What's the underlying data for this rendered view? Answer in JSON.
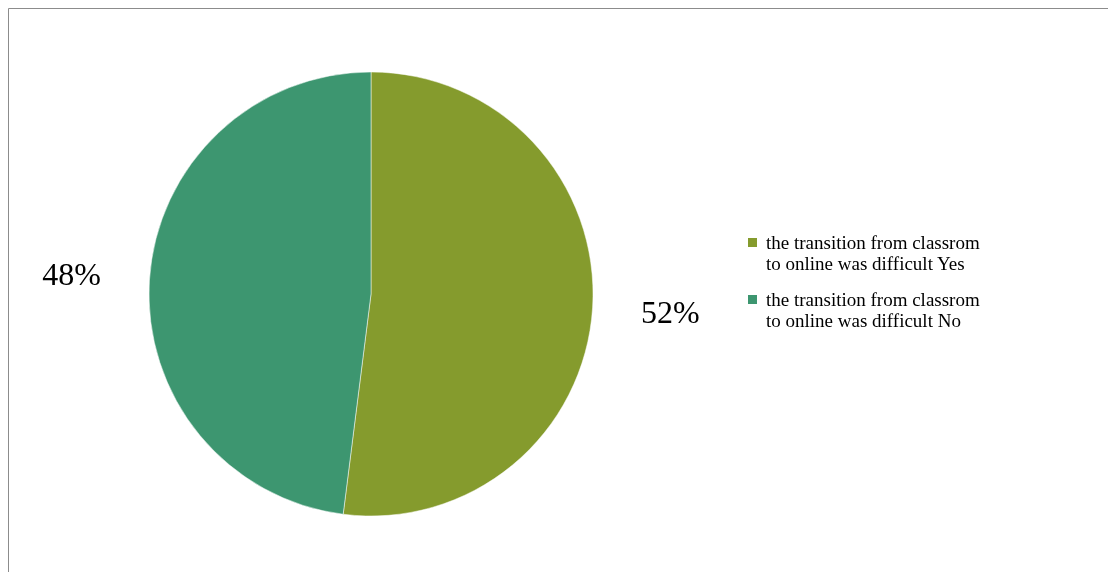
{
  "chart_data": {
    "type": "pie",
    "categories": [
      "the transition from classrom to online was difficult Yes",
      "the transition from classrom to online was difficult No"
    ],
    "values": [
      52,
      48
    ],
    "colors": [
      "#859b2d",
      "#3d9670"
    ],
    "value_labels": [
      "52%",
      "48%"
    ],
    "legend": "right"
  }
}
